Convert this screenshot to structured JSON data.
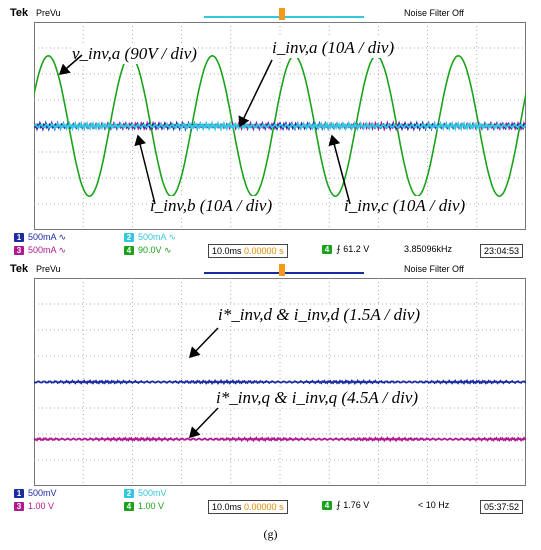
{
  "caption": "(g)",
  "top": {
    "brand": "Tek",
    "mode": "PreVu",
    "filter": "Noise Filter Off",
    "channels": [
      {
        "num": "1",
        "scale": "500mA",
        "color": "#1a2aa0"
      },
      {
        "num": "2",
        "scale": "500mA",
        "color": "#34c7e0"
      },
      {
        "num": "3",
        "scale": "500mA",
        "color": "#b0188e"
      },
      {
        "num": "4",
        "scale": "90.0V",
        "color": "#1aa31a"
      }
    ],
    "timebase": "10.0ms",
    "offset": "0.00000 s",
    "trig_ch": "4",
    "trig_level": "61.2 V",
    "freq": "3.85096kHz",
    "clock": "23:04:53",
    "annotations": [
      {
        "label": "v_inv,a (90V / div)"
      },
      {
        "label": "i_inv,a (10A / div)"
      },
      {
        "label": "i_inv,b (10A / div)"
      },
      {
        "label": "i_inv,c (10A / div)"
      }
    ]
  },
  "bottom": {
    "brand": "Tek",
    "mode": "PreVu",
    "filter": "Noise Filter Off",
    "channels": [
      {
        "num": "1",
        "scale": "500mV",
        "color": "#1a2aa0"
      },
      {
        "num": "2",
        "scale": "500mV",
        "color": "#34c7e0"
      },
      {
        "num": "3",
        "scale": "1.00 V",
        "color": "#b0188e"
      },
      {
        "num": "4",
        "scale": "1.00 V",
        "color": "#1aa31a"
      }
    ],
    "timebase": "10.0ms",
    "offset": "0.00000 s",
    "trig_ch": "4",
    "trig_level": "1.76 V",
    "freq": "< 10 Hz",
    "clock": "05:37:52",
    "annotations": [
      {
        "label": "i*_inv,d & i_inv,d (1.5A / div)"
      },
      {
        "label": "i*_inv,q & i_inv,q (4.5A / div)"
      }
    ]
  },
  "chart_data": [
    {
      "type": "line",
      "divisions": {
        "x": 10,
        "y": 8
      },
      "series": [
        {
          "name": "v_inv,a",
          "waveform": "sine",
          "cycles": 6,
          "offset_div": 0.0,
          "amplitude_div": 2.7
        },
        {
          "name": "i_inv,a",
          "waveform": "ripple",
          "offset_div": 0.0,
          "amplitude_div": 0.1
        },
        {
          "name": "i_inv,b",
          "waveform": "ripple",
          "offset_div": 0.0,
          "amplitude_div": 0.1
        },
        {
          "name": "i_inv,c",
          "waveform": "ripple",
          "offset_div": 0.0,
          "amplitude_div": 0.1
        }
      ]
    },
    {
      "type": "line",
      "divisions": {
        "x": 10,
        "y": 8
      },
      "series": [
        {
          "name": "i*_inv,d & i_inv,d",
          "waveform": "dc",
          "offset_div": 0.0,
          "amplitude_div": 0.05
        },
        {
          "name": "i*_inv,q & i_inv,q",
          "waveform": "dc",
          "offset_div": -2.2,
          "amplitude_div": 0.05
        }
      ]
    }
  ]
}
